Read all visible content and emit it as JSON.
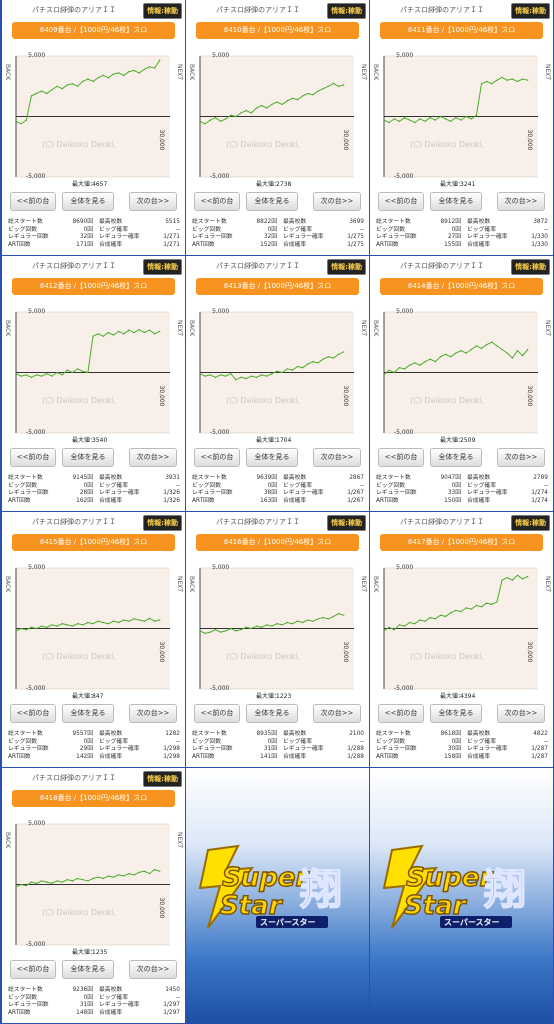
{
  "panel_title": "パチスロ緋弾のアリアＩＩ",
  "status_badge": "情報:稼動",
  "buttons": {
    "prev": "<<前の台",
    "all": "全体を見る",
    "next": "次の台>>"
  },
  "chart_labels": {
    "y_top": "5,000",
    "y_bottom": "-5,000",
    "x_right": "30,000",
    "side_left": "BACK",
    "side_right": "NEXT",
    "watermark": "(C) Daikoku Denki.",
    "max_prefix": "最大値："
  },
  "stat_labels": {
    "total_start": "総スタート数",
    "big_count": "ビッグ回数",
    "regular_count": "レギュラー回数",
    "art_count": "ART回数",
    "max_coins": "最高枚数",
    "big_prob": "ビッグ確率",
    "regular_prob": "レギュラー確率",
    "combined_prob": "合成確率"
  },
  "logo": {
    "text_top": "Super",
    "text_bottom": "Star",
    "kanji": "翔",
    "subtitle": "スーパースター"
  },
  "machines": [
    {
      "machine": "8409番台 /【1000円/46枚】スロ",
      "max_value": "4657",
      "stats": {
        "total_start": "8690回",
        "big_count": "0回",
        "regular_count": "32回",
        "art_count": "171回",
        "max_coins": "5515",
        "big_prob": "--",
        "regular_prob": "1/271",
        "combined_prob": "1/271"
      },
      "chart_data": {
        "type": "line",
        "ylim": [
          -5000,
          5000
        ],
        "xlim": [
          0,
          30000
        ],
        "x": [
          0,
          1000,
          2000,
          3000,
          4000,
          5000,
          6000,
          7000,
          8000,
          9000,
          10000,
          11000,
          12000,
          13000,
          14000,
          15000,
          16000,
          17000,
          18000,
          19000,
          20000,
          21000,
          22000,
          23000,
          24000,
          25000,
          26000,
          27000,
          28000
        ],
        "values": [
          -400,
          -600,
          -300,
          1700,
          1900,
          2100,
          1900,
          2200,
          2500,
          2300,
          2600,
          2700,
          2500,
          2900,
          3100,
          2900,
          3200,
          3400,
          3200,
          3500,
          3600,
          3400,
          3700,
          3800,
          3600,
          3900,
          4100,
          4000,
          4657
        ]
      }
    },
    {
      "machine": "8410番台 /【1000円/46枚】スロ",
      "max_value": "2738",
      "stats": {
        "total_start": "8822回",
        "big_count": "0回",
        "regular_count": "32回",
        "art_count": "152回",
        "max_coins": "3699",
        "big_prob": "--",
        "regular_prob": "1/275",
        "combined_prob": "1/275"
      },
      "chart_data": {
        "type": "line",
        "ylim": [
          -5000,
          5000
        ],
        "xlim": [
          0,
          30000
        ],
        "x": [
          0,
          1000,
          2000,
          3000,
          4000,
          5000,
          6000,
          7000,
          8000,
          9000,
          10000,
          11000,
          12000,
          13000,
          14000,
          15000,
          16000,
          17000,
          18000,
          19000,
          20000,
          21000,
          22000,
          23000,
          24000,
          25000,
          26000,
          27000,
          28000
        ],
        "values": [
          -400,
          -600,
          -300,
          -100,
          -400,
          -200,
          100,
          0,
          300,
          500,
          300,
          700,
          900,
          700,
          1000,
          1200,
          1000,
          1300,
          1500,
          1400,
          1700,
          1900,
          1800,
          2100,
          2300,
          2500,
          2738,
          2500,
          2600
        ]
      }
    },
    {
      "machine": "8411番台 /【1000円/46枚】スロ",
      "max_value": "3241",
      "stats": {
        "total_start": "8912回",
        "big_count": "0回",
        "regular_count": "27回",
        "art_count": "155回",
        "max_coins": "3872",
        "big_prob": "--",
        "regular_prob": "1/330",
        "combined_prob": "1/330"
      },
      "chart_data": {
        "type": "line",
        "ylim": [
          -5000,
          5000
        ],
        "xlim": [
          0,
          30000
        ],
        "x": [
          0,
          1000,
          2000,
          3000,
          4000,
          5000,
          6000,
          7000,
          8000,
          9000,
          10000,
          11000,
          12000,
          13000,
          14000,
          15000,
          16000,
          17000,
          18000,
          19000,
          20000,
          21000,
          22000,
          23000,
          24000,
          25000,
          26000,
          27000,
          28000
        ],
        "values": [
          -300,
          -500,
          -200,
          -400,
          -100,
          -300,
          -500,
          -200,
          -400,
          -100,
          -300,
          0,
          -200,
          -400,
          -100,
          -300,
          0,
          -200,
          100,
          2700,
          2900,
          2700,
          3000,
          3241,
          3000,
          3100,
          2900,
          3100,
          3000
        ]
      }
    },
    {
      "machine": "8412番台 /【1000円/46枚】スロ",
      "max_value": "3540",
      "stats": {
        "total_start": "9145回",
        "big_count": "0回",
        "regular_count": "28回",
        "art_count": "162回",
        "max_coins": "3931",
        "big_prob": "--",
        "regular_prob": "1/326",
        "combined_prob": "1/326"
      },
      "chart_data": {
        "type": "line",
        "ylim": [
          -5000,
          5000
        ],
        "xlim": [
          0,
          30000
        ],
        "x": [
          0,
          1000,
          2000,
          3000,
          4000,
          5000,
          6000,
          7000,
          8000,
          9000,
          10000,
          11000,
          12000,
          13000,
          14000,
          15000,
          16000,
          17000,
          18000,
          19000,
          20000,
          21000,
          22000,
          23000,
          24000,
          25000,
          26000,
          27000,
          28000
        ],
        "values": [
          -100,
          -300,
          -200,
          -400,
          -200,
          -300,
          -100,
          -300,
          0,
          -200,
          200,
          0,
          300,
          100,
          0,
          3000,
          3200,
          3000,
          3300,
          3100,
          3400,
          3200,
          3500,
          3300,
          3540,
          3300,
          3500,
          3200,
          3400
        ]
      }
    },
    {
      "machine": "8413番台 /【1000円/46枚】スロ",
      "max_value": "1704",
      "stats": {
        "total_start": "9639回",
        "big_count": "0回",
        "regular_count": "38回",
        "art_count": "163回",
        "max_coins": "2867",
        "big_prob": "--",
        "regular_prob": "1/267",
        "combined_prob": "1/267"
      },
      "chart_data": {
        "type": "line",
        "ylim": [
          -5000,
          5000
        ],
        "xlim": [
          0,
          30000
        ],
        "x": [
          0,
          1000,
          2000,
          3000,
          4000,
          5000,
          6000,
          7000,
          8000,
          9000,
          10000,
          11000,
          12000,
          13000,
          14000,
          15000,
          16000,
          17000,
          18000,
          19000,
          20000,
          21000,
          22000,
          23000,
          24000,
          25000,
          26000,
          27000,
          28000
        ],
        "values": [
          -100,
          -300,
          -200,
          -400,
          -200,
          -300,
          -100,
          -600,
          -400,
          -500,
          -300,
          -400,
          -200,
          -300,
          -100,
          100,
          0,
          300,
          200,
          500,
          400,
          700,
          900,
          800,
          1100,
          1300,
          1200,
          1500,
          1704
        ]
      }
    },
    {
      "machine": "8414番台 /【1000円/46枚】スロ",
      "max_value": "2509",
      "stats": {
        "total_start": "9047回",
        "big_count": "0回",
        "regular_count": "33回",
        "art_count": "150回",
        "max_coins": "2789",
        "big_prob": "--",
        "regular_prob": "1/274",
        "combined_prob": "1/274"
      },
      "chart_data": {
        "type": "line",
        "ylim": [
          -5000,
          5000
        ],
        "xlim": [
          0,
          30000
        ],
        "x": [
          0,
          1000,
          2000,
          3000,
          4000,
          5000,
          6000,
          7000,
          8000,
          9000,
          10000,
          11000,
          12000,
          13000,
          14000,
          15000,
          16000,
          17000,
          18000,
          19000,
          20000,
          21000,
          22000,
          23000,
          24000,
          25000,
          26000,
          27000,
          28000
        ],
        "values": [
          -200,
          200,
          0,
          400,
          300,
          600,
          800,
          600,
          900,
          1100,
          900,
          1300,
          1500,
          1300,
          1600,
          1800,
          1600,
          1900,
          2200,
          2000,
          2300,
          2509,
          2200,
          1900,
          1600,
          1200,
          1800,
          1400,
          1900
        ]
      }
    },
    {
      "machine": "8415番台 /【1000円/46枚】スロ",
      "max_value": "847",
      "stats": {
        "total_start": "9557回",
        "big_count": "0回",
        "regular_count": "29回",
        "art_count": "142回",
        "max_coins": "1282",
        "big_prob": "--",
        "regular_prob": "1/298",
        "combined_prob": "1/298"
      },
      "chart_data": {
        "type": "line",
        "ylim": [
          -5000,
          5000
        ],
        "xlim": [
          0,
          30000
        ],
        "x": [
          0,
          1000,
          2000,
          3000,
          4000,
          5000,
          6000,
          7000,
          8000,
          9000,
          10000,
          11000,
          12000,
          13000,
          14000,
          15000,
          16000,
          17000,
          18000,
          19000,
          20000,
          21000,
          22000,
          23000,
          24000,
          25000,
          26000,
          27000,
          28000
        ],
        "values": [
          -200,
          0,
          -100,
          100,
          0,
          200,
          100,
          300,
          200,
          400,
          300,
          200,
          400,
          300,
          500,
          400,
          600,
          500,
          400,
          600,
          500,
          700,
          600,
          800,
          700,
          600,
          847,
          600,
          700
        ]
      }
    },
    {
      "machine": "8416番台 /【1000円/46枚】スロ",
      "max_value": "1223",
      "stats": {
        "total_start": "8935回",
        "big_count": "0回",
        "regular_count": "31回",
        "art_count": "141回",
        "max_coins": "2100",
        "big_prob": "--",
        "regular_prob": "1/288",
        "combined_prob": "1/288"
      },
      "chart_data": {
        "type": "line",
        "ylim": [
          -5000,
          5000
        ],
        "xlim": [
          0,
          30000
        ],
        "x": [
          0,
          1000,
          2000,
          3000,
          4000,
          5000,
          6000,
          7000,
          8000,
          9000,
          10000,
          11000,
          12000,
          13000,
          14000,
          15000,
          16000,
          17000,
          18000,
          19000,
          20000,
          21000,
          22000,
          23000,
          24000,
          25000,
          26000,
          27000,
          28000
        ],
        "values": [
          -200,
          -400,
          -300,
          -100,
          -300,
          -200,
          0,
          -200,
          -100,
          100,
          0,
          200,
          100,
          300,
          200,
          400,
          300,
          500,
          400,
          600,
          500,
          700,
          600,
          800,
          900,
          800,
          1000,
          1223,
          1100
        ]
      }
    },
    {
      "machine": "8417番台 /【1000円/46枚】スロ",
      "max_value": "4394",
      "stats": {
        "total_start": "8618回",
        "big_count": "0回",
        "regular_count": "30回",
        "art_count": "158回",
        "max_coins": "4822",
        "big_prob": "--",
        "regular_prob": "1/287",
        "combined_prob": "1/287"
      },
      "chart_data": {
        "type": "line",
        "ylim": [
          -5000,
          5000
        ],
        "xlim": [
          0,
          30000
        ],
        "x": [
          0,
          1000,
          2000,
          3000,
          4000,
          5000,
          6000,
          7000,
          8000,
          9000,
          10000,
          11000,
          12000,
          13000,
          14000,
          15000,
          16000,
          17000,
          18000,
          19000,
          20000,
          21000,
          22000,
          23000,
          24000,
          25000,
          26000,
          27000,
          28000
        ],
        "values": [
          -200,
          100,
          -100,
          300,
          200,
          500,
          400,
          700,
          600,
          900,
          800,
          1100,
          1000,
          1300,
          1500,
          1400,
          1700,
          1600,
          1900,
          1800,
          2100,
          2000,
          2200,
          4000,
          4200,
          4000,
          4394,
          4100,
          4300
        ]
      }
    },
    {
      "machine": "8418番台 /【1000円/46枚】スロ",
      "max_value": "1235",
      "stats": {
        "total_start": "9236回",
        "big_count": "0回",
        "regular_count": "31回",
        "art_count": "148回",
        "max_coins": "1450",
        "big_prob": "--",
        "regular_prob": "1/297",
        "combined_prob": "1/297"
      },
      "chart_data": {
        "type": "line",
        "ylim": [
          -5000,
          5000
        ],
        "xlim": [
          0,
          30000
        ],
        "x": [
          0,
          1000,
          2000,
          3000,
          4000,
          5000,
          6000,
          7000,
          8000,
          9000,
          10000,
          11000,
          12000,
          13000,
          14000,
          15000,
          16000,
          17000,
          18000,
          19000,
          20000,
          21000,
          22000,
          23000,
          24000,
          25000,
          26000,
          27000,
          28000
        ],
        "values": [
          -200,
          0,
          -100,
          200,
          100,
          300,
          200,
          100,
          300,
          200,
          400,
          300,
          500,
          400,
          300,
          500,
          600,
          500,
          700,
          600,
          800,
          700,
          900,
          800,
          1000,
          1100,
          900,
          1235,
          1100
        ]
      }
    }
  ]
}
